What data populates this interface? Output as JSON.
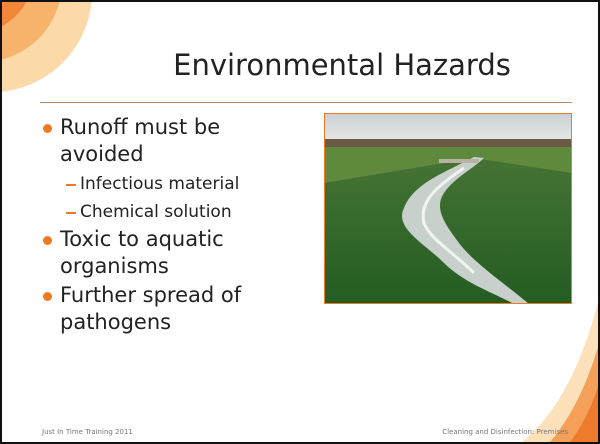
{
  "slide": {
    "title": "Environmental Hazards",
    "bullets": [
      {
        "text": "Runoff must be avoided",
        "sub": [
          "Infectious material",
          "Chemical solution"
        ]
      },
      {
        "text": "Toxic to aquatic organisms",
        "sub": []
      },
      {
        "text": "Further spread of pathogens",
        "sub": []
      }
    ],
    "footer_left": "Just In Time Training 2011",
    "footer_right": "Cleaning and Disinfection: Premises"
  }
}
